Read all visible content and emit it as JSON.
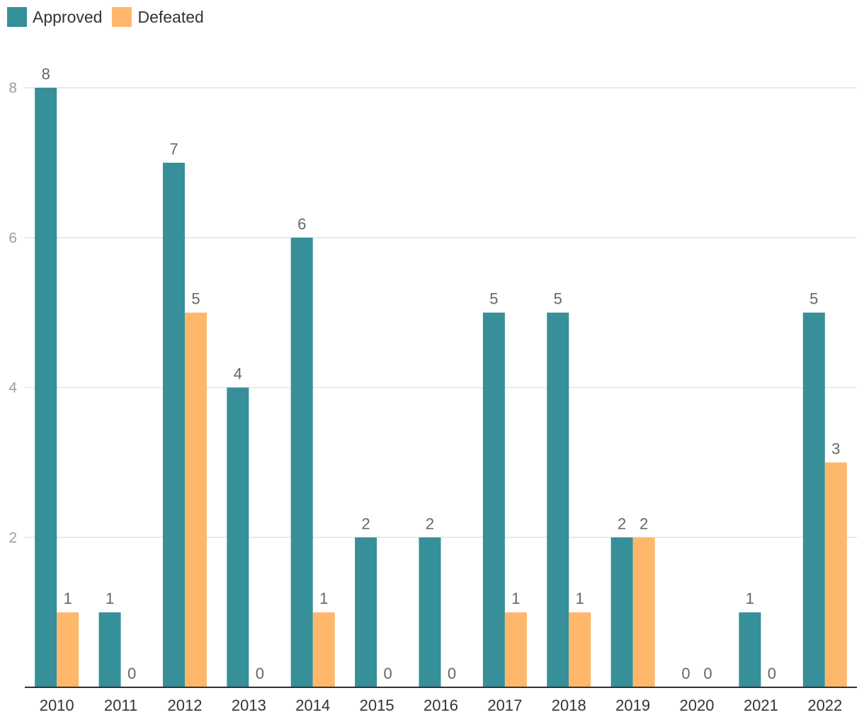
{
  "chart_data": {
    "type": "bar",
    "categories": [
      "2010",
      "2011",
      "2012",
      "2013",
      "2014",
      "2015",
      "2016",
      "2017",
      "2018",
      "2019",
      "2020",
      "2021",
      "2022"
    ],
    "series": [
      {
        "name": "Approved",
        "color": "#368f99",
        "values": [
          8,
          1,
          7,
          4,
          6,
          2,
          2,
          5,
          5,
          2,
          0,
          1,
          5
        ]
      },
      {
        "name": "Defeated",
        "color": "#ffb76b",
        "values": [
          1,
          0,
          5,
          0,
          1,
          0,
          0,
          1,
          1,
          2,
          0,
          0,
          3
        ]
      }
    ],
    "yticks": [
      2,
      4,
      6,
      8
    ],
    "ylim": [
      0,
      8
    ],
    "grid": true,
    "legend_position": "top-left",
    "data_labels": true
  }
}
